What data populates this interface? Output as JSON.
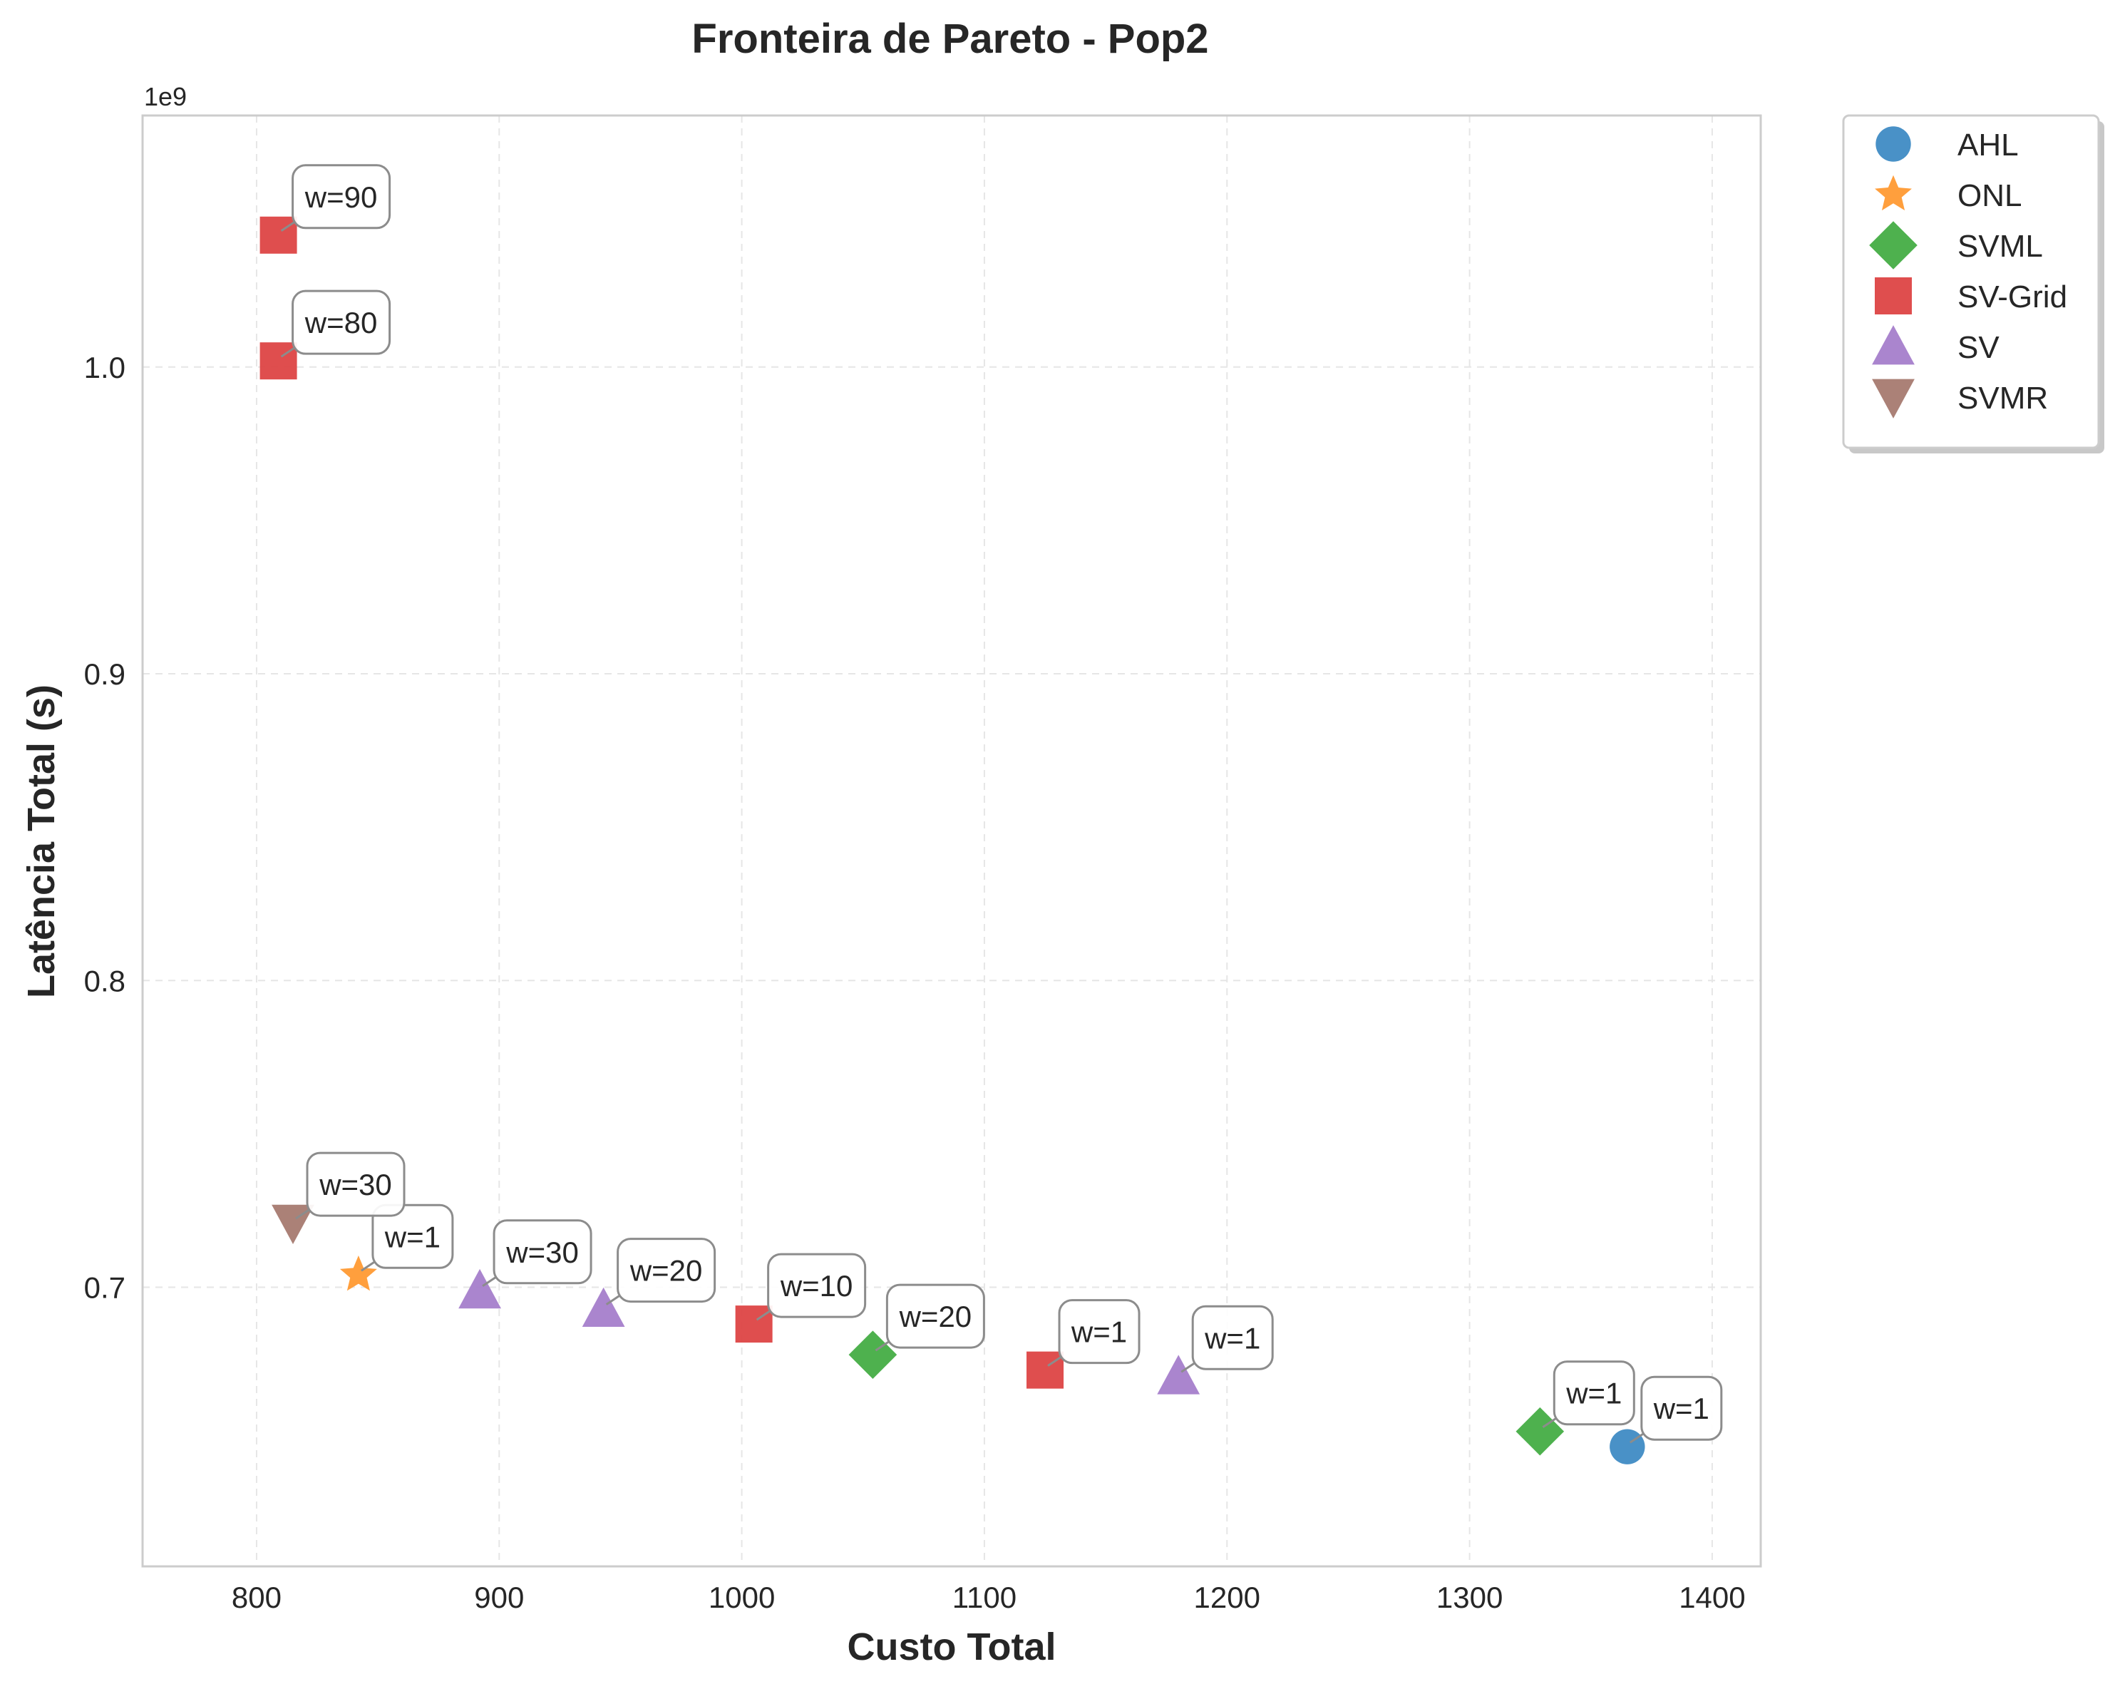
{
  "chart_data": {
    "type": "scatter",
    "title": "Fronteira de Pareto - Pop2",
    "xlabel": "Custo Total",
    "ylabel": "Latência Total (s)",
    "y_offset_label": "1e9",
    "xlim": [
      753,
      1420
    ],
    "ylim": [
      0.609,
      1.082
    ],
    "xticks": [
      800,
      900,
      1000,
      1100,
      1200,
      1300,
      1400
    ],
    "xtick_labels": [
      "800",
      "900",
      "1000",
      "1100",
      "1200",
      "1300",
      "1400"
    ],
    "yticks": [
      0.7,
      0.8,
      0.9,
      1.0
    ],
    "ytick_labels": [
      "0.7",
      "0.8",
      "0.9",
      "1.0"
    ],
    "grid": true,
    "legend_position": "outside-top-right",
    "series": [
      {
        "name": "AHL",
        "color": "#3f8bc4",
        "marker": "circle",
        "points": [
          {
            "x": 1365,
            "y": 0.648,
            "label": "w=1"
          }
        ]
      },
      {
        "name": "ONL",
        "color": "#ff9a33",
        "marker": "star",
        "points": [
          {
            "x": 842,
            "y": 0.704,
            "label": "w=1"
          }
        ]
      },
      {
        "name": "SVML",
        "color": "#44ad44",
        "marker": "diamond",
        "points": [
          {
            "x": 1054,
            "y": 0.678,
            "label": "w=20"
          },
          {
            "x": 1329,
            "y": 0.653,
            "label": "w=1"
          }
        ]
      },
      {
        "name": "SV-Grid",
        "color": "#dd4445",
        "marker": "square",
        "points": [
          {
            "x": 809,
            "y": 1.043,
            "label": "w=90"
          },
          {
            "x": 809,
            "y": 1.002,
            "label": "w=80"
          },
          {
            "x": 1005,
            "y": 0.688,
            "label": "w=10"
          },
          {
            "x": 1125,
            "y": 0.673,
            "label": "w=1"
          }
        ]
      },
      {
        "name": "SV",
        "color": "#a57ecb",
        "marker": "triangle-up",
        "points": [
          {
            "x": 892,
            "y": 0.699,
            "label": "w=30"
          },
          {
            "x": 943,
            "y": 0.693,
            "label": "w=20"
          },
          {
            "x": 1180,
            "y": 0.671,
            "label": "w=1"
          }
        ]
      },
      {
        "name": "SVMR",
        "color": "#a67a70",
        "marker": "triangle-down",
        "points": [
          {
            "x": 815,
            "y": 0.721,
            "label": "w=30"
          }
        ]
      }
    ]
  }
}
